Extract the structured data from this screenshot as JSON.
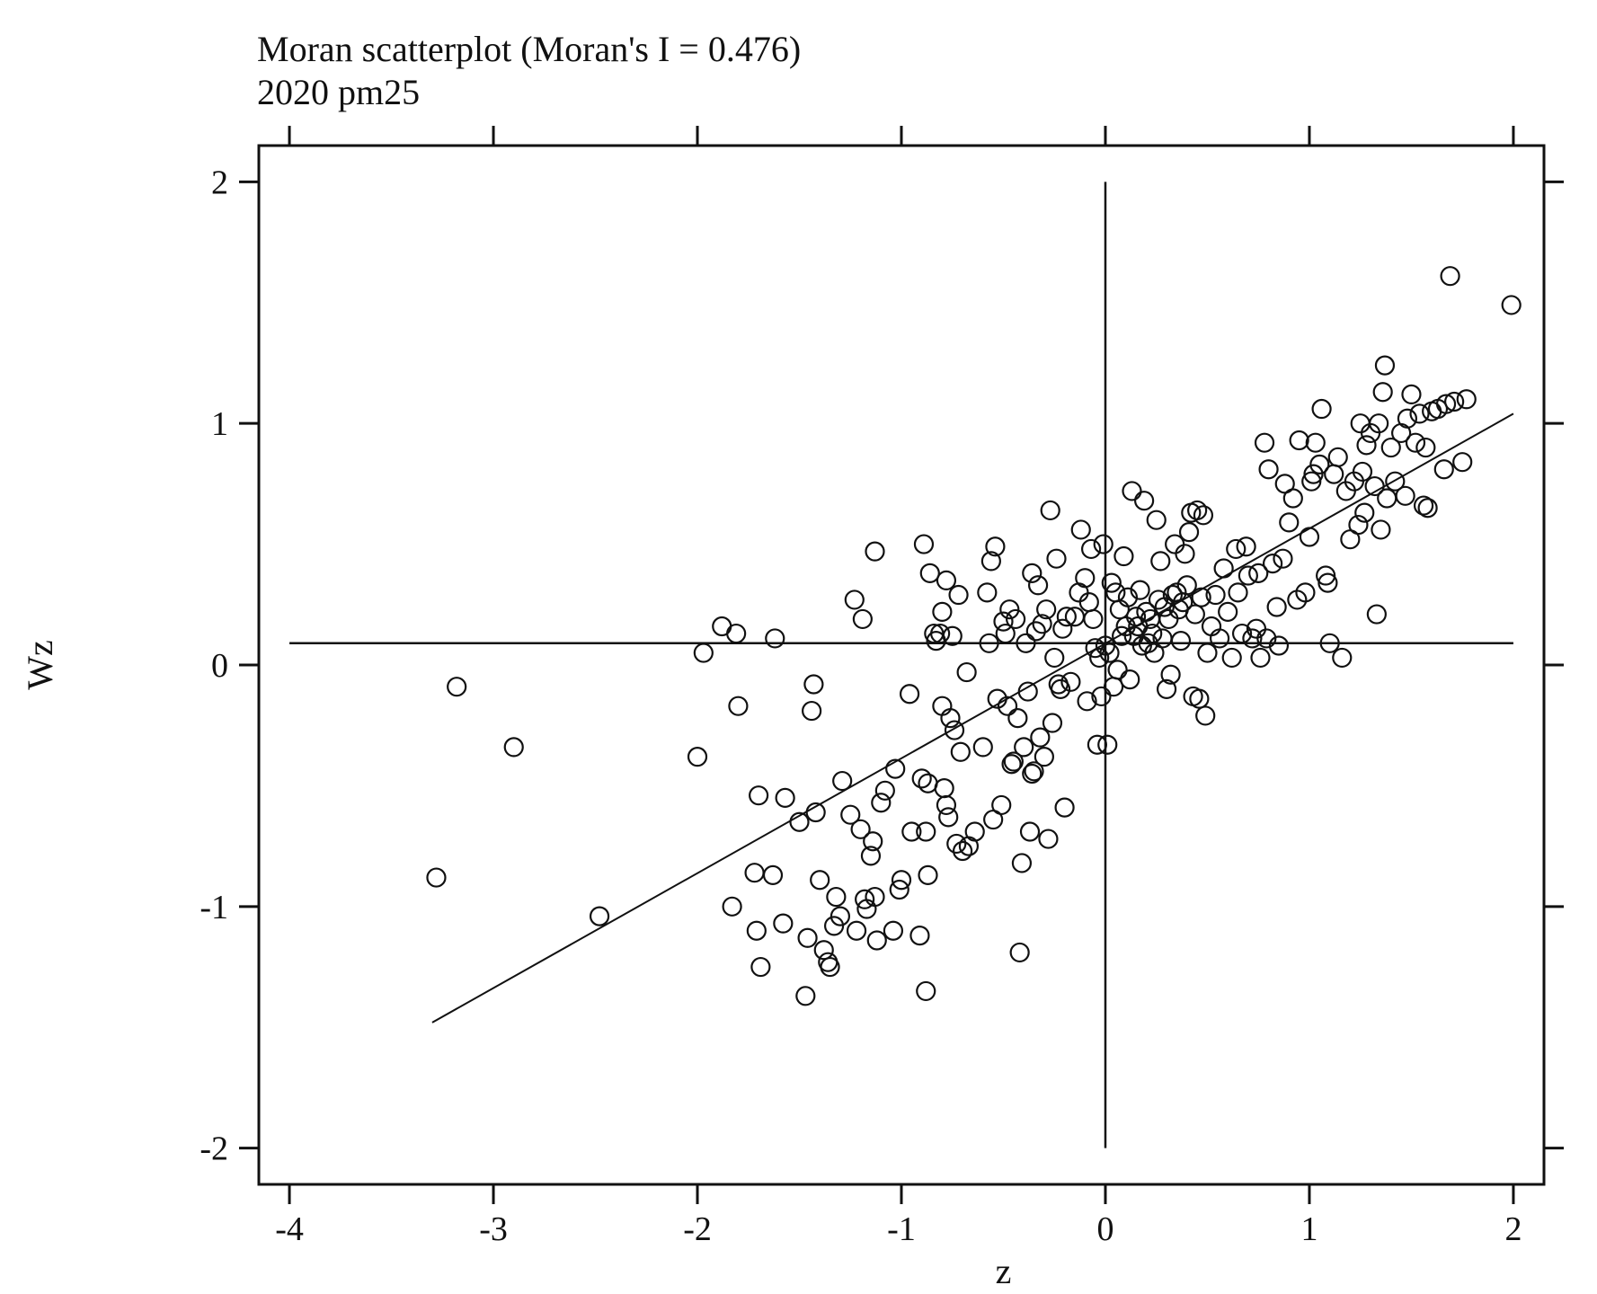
{
  "chart_data": {
    "type": "scatter",
    "title": "Moran scatterplot (Moran's I = 0.476)",
    "subtitle": "2020 pm25",
    "xlabel": "z",
    "ylabel": "Wz",
    "xlim": [
      -4.15,
      2.15
    ],
    "ylim": [
      -2.15,
      2.15
    ],
    "x_ticks": [
      -4,
      -3,
      -2,
      -1,
      0,
      1,
      2
    ],
    "y_ticks": [
      -2,
      -1,
      0,
      1,
      2
    ],
    "x_tick_labels": [
      "-4",
      "-3",
      "-2",
      "-1",
      "0",
      "1",
      "2"
    ],
    "y_tick_labels": [
      "-2",
      "-1",
      "0",
      "1",
      "2"
    ],
    "ticks_on_all_sides": true,
    "grid": false,
    "legend": "none",
    "reference_lines": {
      "horizontal": {
        "y": 0.09,
        "x_from": -4,
        "x_to": 2
      },
      "vertical": {
        "x": 0,
        "y_from": -2,
        "y_to": 2
      }
    },
    "fit_line": {
      "x_from": -3.3,
      "x_to": 2.0,
      "y_from": -1.48,
      "y_to": 1.04
    },
    "marker": "hollow-circle",
    "points": [
      [
        -3.28,
        -0.88
      ],
      [
        -3.18,
        -0.09
      ],
      [
        -2.9,
        -0.34
      ],
      [
        -2.48,
        -1.04
      ],
      [
        -2.0,
        -0.38
      ],
      [
        -1.97,
        0.05
      ],
      [
        -1.88,
        0.16
      ],
      [
        -1.83,
        -1.0
      ],
      [
        -1.81,
        0.13
      ],
      [
        -1.8,
        -0.17
      ],
      [
        -1.72,
        -0.86
      ],
      [
        -1.71,
        -1.1
      ],
      [
        -1.7,
        -0.54
      ],
      [
        -1.69,
        -1.25
      ],
      [
        -1.63,
        -0.87
      ],
      [
        -1.62,
        0.11
      ],
      [
        -1.58,
        -1.07
      ],
      [
        -1.57,
        -0.55
      ],
      [
        -1.5,
        -0.65
      ],
      [
        -1.47,
        -1.37
      ],
      [
        -1.46,
        -1.13
      ],
      [
        -1.44,
        -0.19
      ],
      [
        -1.43,
        -0.08
      ],
      [
        -1.42,
        -0.61
      ],
      [
        -1.4,
        -0.89
      ],
      [
        -1.38,
        -1.18
      ],
      [
        -1.36,
        -1.23
      ],
      [
        -1.35,
        -1.25
      ],
      [
        -1.33,
        -1.08
      ],
      [
        -1.32,
        -0.96
      ],
      [
        -1.3,
        -1.04
      ],
      [
        -1.29,
        -0.48
      ],
      [
        -1.25,
        -0.62
      ],
      [
        -1.23,
        0.27
      ],
      [
        -1.22,
        -1.1
      ],
      [
        -1.2,
        -0.68
      ],
      [
        -1.19,
        0.19
      ],
      [
        -1.18,
        -0.97
      ],
      [
        -1.17,
        -1.01
      ],
      [
        -1.15,
        -0.79
      ],
      [
        -1.14,
        -0.73
      ],
      [
        -1.13,
        -0.96
      ],
      [
        -1.13,
        0.47
      ],
      [
        -1.12,
        -1.14
      ],
      [
        -1.1,
        -0.57
      ],
      [
        -1.08,
        -0.52
      ],
      [
        -1.04,
        -1.1
      ],
      [
        -1.03,
        -0.43
      ],
      [
        -1.01,
        -0.93
      ],
      [
        -1.0,
        -0.89
      ],
      [
        -0.96,
        -0.12
      ],
      [
        -0.95,
        -0.69
      ],
      [
        -0.91,
        -1.12
      ],
      [
        -0.9,
        -0.47
      ],
      [
        -0.89,
        0.5
      ],
      [
        -0.88,
        -1.35
      ],
      [
        -0.88,
        -0.69
      ],
      [
        -0.87,
        -0.49
      ],
      [
        -0.87,
        -0.87
      ],
      [
        -0.86,
        0.38
      ],
      [
        -0.84,
        0.13
      ],
      [
        -0.83,
        0.1
      ],
      [
        -0.81,
        0.13
      ],
      [
        -0.8,
        0.22
      ],
      [
        -0.8,
        -0.17
      ],
      [
        -0.79,
        -0.51
      ],
      [
        -0.78,
        0.35
      ],
      [
        -0.78,
        -0.58
      ],
      [
        -0.77,
        -0.63
      ],
      [
        -0.76,
        -0.22
      ],
      [
        -0.75,
        0.12
      ],
      [
        -0.74,
        -0.27
      ],
      [
        -0.73,
        -0.74
      ],
      [
        -0.72,
        0.29
      ],
      [
        -0.71,
        -0.36
      ],
      [
        -0.7,
        -0.77
      ],
      [
        -0.68,
        -0.03
      ],
      [
        -0.67,
        -0.75
      ],
      [
        -0.64,
        -0.69
      ],
      [
        -0.6,
        -0.34
      ],
      [
        -0.58,
        0.3
      ],
      [
        -0.57,
        0.09
      ],
      [
        -0.56,
        0.43
      ],
      [
        -0.55,
        -0.64
      ],
      [
        -0.54,
        0.49
      ],
      [
        -0.53,
        -0.14
      ],
      [
        -0.51,
        -0.58
      ],
      [
        -0.5,
        0.18
      ],
      [
        -0.49,
        0.13
      ],
      [
        -0.48,
        -0.17
      ],
      [
        -0.47,
        0.23
      ],
      [
        -0.46,
        -0.41
      ],
      [
        -0.45,
        -0.4
      ],
      [
        -0.44,
        0.19
      ],
      [
        -0.43,
        -0.22
      ],
      [
        -0.42,
        -1.19
      ],
      [
        -0.41,
        -0.82
      ],
      [
        -0.4,
        -0.34
      ],
      [
        -0.39,
        0.09
      ],
      [
        -0.38,
        -0.11
      ],
      [
        -0.37,
        -0.69
      ],
      [
        -0.36,
        0.38
      ],
      [
        -0.36,
        -0.45
      ],
      [
        -0.35,
        -0.44
      ],
      [
        -0.34,
        0.14
      ],
      [
        -0.33,
        0.33
      ],
      [
        -0.32,
        -0.3
      ],
      [
        -0.31,
        0.17
      ],
      [
        -0.3,
        -0.38
      ],
      [
        -0.29,
        0.23
      ],
      [
        -0.28,
        -0.72
      ],
      [
        -0.27,
        0.64
      ],
      [
        -0.26,
        -0.24
      ],
      [
        -0.25,
        0.03
      ],
      [
        -0.24,
        0.44
      ],
      [
        -0.23,
        -0.08
      ],
      [
        -0.22,
        -0.1
      ],
      [
        -0.21,
        0.15
      ],
      [
        -0.2,
        -0.59
      ],
      [
        -0.19,
        0.2
      ],
      [
        -0.17,
        -0.07
      ],
      [
        -0.15,
        0.2
      ],
      [
        -0.13,
        0.3
      ],
      [
        -0.12,
        0.56
      ],
      [
        -0.1,
        0.36
      ],
      [
        -0.09,
        -0.15
      ],
      [
        -0.08,
        0.26
      ],
      [
        -0.07,
        0.48
      ],
      [
        -0.06,
        0.19
      ],
      [
        -0.05,
        0.07
      ],
      [
        -0.04,
        -0.33
      ],
      [
        -0.03,
        0.03
      ],
      [
        -0.02,
        -0.13
      ],
      [
        -0.01,
        0.5
      ],
      [
        0.0,
        0.08
      ],
      [
        0.01,
        -0.33
      ],
      [
        0.02,
        0.05
      ],
      [
        0.03,
        0.34
      ],
      [
        0.04,
        -0.09
      ],
      [
        0.05,
        0.3
      ],
      [
        0.06,
        -0.02
      ],
      [
        0.07,
        0.23
      ],
      [
        0.08,
        0.12
      ],
      [
        0.09,
        0.45
      ],
      [
        0.1,
        0.16
      ],
      [
        0.11,
        0.28
      ],
      [
        0.12,
        -0.06
      ],
      [
        0.13,
        0.72
      ],
      [
        0.14,
        0.12
      ],
      [
        0.15,
        0.2
      ],
      [
        0.16,
        0.16
      ],
      [
        0.17,
        0.31
      ],
      [
        0.18,
        0.08
      ],
      [
        0.19,
        0.68
      ],
      [
        0.2,
        0.22
      ],
      [
        0.21,
        0.09
      ],
      [
        0.22,
        0.19
      ],
      [
        0.23,
        0.13
      ],
      [
        0.24,
        0.05
      ],
      [
        0.25,
        0.6
      ],
      [
        0.26,
        0.27
      ],
      [
        0.27,
        0.43
      ],
      [
        0.28,
        0.11
      ],
      [
        0.29,
        0.24
      ],
      [
        0.3,
        -0.1
      ],
      [
        0.31,
        0.19
      ],
      [
        0.32,
        -0.04
      ],
      [
        0.33,
        0.29
      ],
      [
        0.34,
        0.5
      ],
      [
        0.35,
        0.3
      ],
      [
        0.36,
        0.23
      ],
      [
        0.37,
        0.1
      ],
      [
        0.38,
        0.26
      ],
      [
        0.39,
        0.46
      ],
      [
        0.4,
        0.33
      ],
      [
        0.41,
        0.55
      ],
      [
        0.42,
        0.63
      ],
      [
        0.43,
        -0.13
      ],
      [
        0.44,
        0.21
      ],
      [
        0.45,
        0.64
      ],
      [
        0.46,
        -0.14
      ],
      [
        0.47,
        0.28
      ],
      [
        0.48,
        0.62
      ],
      [
        0.49,
        -0.21
      ],
      [
        0.5,
        0.05
      ],
      [
        0.52,
        0.16
      ],
      [
        0.54,
        0.29
      ],
      [
        0.56,
        0.11
      ],
      [
        0.58,
        0.4
      ],
      [
        0.6,
        0.22
      ],
      [
        0.62,
        0.03
      ],
      [
        0.64,
        0.48
      ],
      [
        0.65,
        0.3
      ],
      [
        0.67,
        0.13
      ],
      [
        0.69,
        0.49
      ],
      [
        0.7,
        0.37
      ],
      [
        0.72,
        0.11
      ],
      [
        0.74,
        0.15
      ],
      [
        0.75,
        0.38
      ],
      [
        0.76,
        0.03
      ],
      [
        0.78,
        0.92
      ],
      [
        0.79,
        0.11
      ],
      [
        0.8,
        0.81
      ],
      [
        0.82,
        0.42
      ],
      [
        0.84,
        0.24
      ],
      [
        0.85,
        0.08
      ],
      [
        0.87,
        0.44
      ],
      [
        0.88,
        0.75
      ],
      [
        0.9,
        0.59
      ],
      [
        0.92,
        0.69
      ],
      [
        0.94,
        0.27
      ],
      [
        0.95,
        0.93
      ],
      [
        0.98,
        0.3
      ],
      [
        1.0,
        0.53
      ],
      [
        1.01,
        0.76
      ],
      [
        1.02,
        0.79
      ],
      [
        1.03,
        0.92
      ],
      [
        1.05,
        0.83
      ],
      [
        1.06,
        1.06
      ],
      [
        1.08,
        0.37
      ],
      [
        1.09,
        0.34
      ],
      [
        1.1,
        0.09
      ],
      [
        1.12,
        0.79
      ],
      [
        1.14,
        0.86
      ],
      [
        1.16,
        0.03
      ],
      [
        1.18,
        0.72
      ],
      [
        1.2,
        0.52
      ],
      [
        1.22,
        0.76
      ],
      [
        1.24,
        0.58
      ],
      [
        1.25,
        1.0
      ],
      [
        1.26,
        0.8
      ],
      [
        1.27,
        0.63
      ],
      [
        1.28,
        0.91
      ],
      [
        1.3,
        0.96
      ],
      [
        1.32,
        0.74
      ],
      [
        1.33,
        0.21
      ],
      [
        1.34,
        1.0
      ],
      [
        1.35,
        0.56
      ],
      [
        1.36,
        1.13
      ],
      [
        1.37,
        1.24
      ],
      [
        1.38,
        0.69
      ],
      [
        1.4,
        0.9
      ],
      [
        1.42,
        0.76
      ],
      [
        1.45,
        0.96
      ],
      [
        1.47,
        0.7
      ],
      [
        1.48,
        1.02
      ],
      [
        1.5,
        1.12
      ],
      [
        1.52,
        0.92
      ],
      [
        1.54,
        1.04
      ],
      [
        1.56,
        0.66
      ],
      [
        1.57,
        0.9
      ],
      [
        1.58,
        0.65
      ],
      [
        1.6,
        1.05
      ],
      [
        1.63,
        1.06
      ],
      [
        1.66,
        0.81
      ],
      [
        1.67,
        1.08
      ],
      [
        1.69,
        1.61
      ],
      [
        1.71,
        1.09
      ],
      [
        1.75,
        0.84
      ],
      [
        1.77,
        1.1
      ],
      [
        1.99,
        1.49
      ]
    ]
  }
}
